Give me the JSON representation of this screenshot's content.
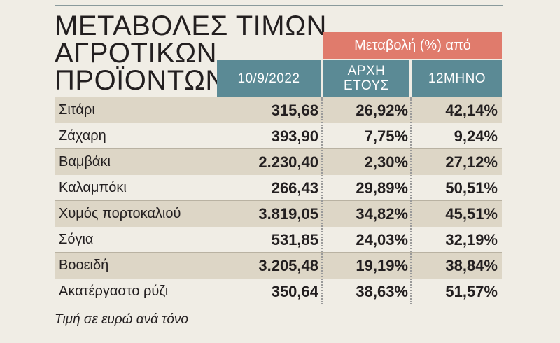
{
  "title": {
    "line1": "ΜΕΤΑΒΟΛΕΣ ΤΙΜΩΝ",
    "line2": "ΑΓΡΟΤΙΚΩΝ",
    "line3": "ΠΡΟΪΟΝΤΩΝ"
  },
  "header": {
    "change_label": "Μεταβολή (%) από",
    "date_col": "10/9/2022",
    "year_col_line1": "ΑΡΧΗ",
    "year_col_line2": "ΕΤΟΥΣ",
    "twelve_month_col": "12ΜΗΝΟ"
  },
  "rows": [
    {
      "name": "Σιτάρι",
      "price": "315,68",
      "ytd": "26,92%",
      "yoy": "42,14%"
    },
    {
      "name": "Ζάχαρη",
      "price": "393,90",
      "ytd": "7,75%",
      "yoy": "9,24%"
    },
    {
      "name": "Βαμβάκι",
      "price": "2.230,40",
      "ytd": "2,30%",
      "yoy": "27,12%"
    },
    {
      "name": "Καλαμπόκι",
      "price": "266,43",
      "ytd": "29,89%",
      "yoy": "50,51%"
    },
    {
      "name": "Χυμός πορτοκαλιού",
      "price": "3.819,05",
      "ytd": "34,82%",
      "yoy": "45,51%"
    },
    {
      "name": "Σόγια",
      "price": "531,85",
      "ytd": "24,03%",
      "yoy": "32,19%"
    },
    {
      "name": "Βοοειδή",
      "price": "3.205,48",
      "ytd": "19,19%",
      "yoy": "38,84%"
    },
    {
      "name": "Ακατέργαστο ρύζι",
      "price": "350,64",
      "ytd": "38,63%",
      "yoy": "51,57%"
    }
  ],
  "footnote": "Τιμή σε ευρώ ανά τόνο",
  "colors": {
    "background": "#f0ede5",
    "accent_red": "#e07b6c",
    "header_teal": "#5b8a95",
    "row_shade": "#ddd6c6"
  }
}
